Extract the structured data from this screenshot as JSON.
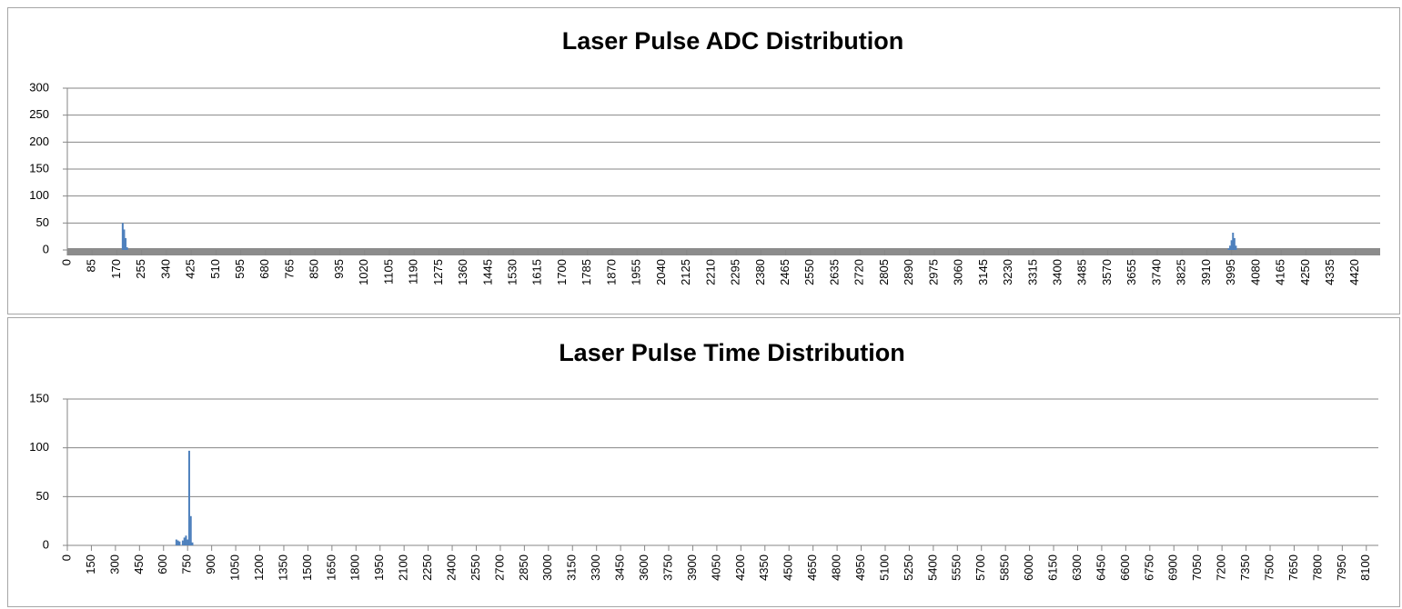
{
  "chart_data": [
    {
      "type": "bar",
      "title": "Laser Pulse ADC Distribution",
      "color": "#4f81bd",
      "grid": true,
      "x": [
        190,
        195,
        200,
        205,
        3985,
        3990,
        3995,
        4000,
        4005,
        4010
      ],
      "values": [
        50,
        38,
        22,
        5,
        3,
        8,
        18,
        32,
        22,
        8
      ],
      "xlim": [
        0,
        4505
      ],
      "xticks": [
        0,
        85,
        170,
        255,
        340,
        425,
        510,
        595,
        680,
        765,
        850,
        935,
        1020,
        1105,
        1190,
        1275,
        1360,
        1445,
        1530,
        1615,
        1700,
        1785,
        1870,
        1955,
        2040,
        2125,
        2210,
        2295,
        2380,
        2465,
        2550,
        2635,
        2720,
        2805,
        2890,
        2975,
        3060,
        3145,
        3230,
        3315,
        3400,
        3485,
        3570,
        3655,
        3740,
        3825,
        3910,
        3995,
        4080,
        4165,
        4250,
        4335,
        4420
      ],
      "ylim": [
        0,
        300
      ],
      "yticks": [
        0,
        50,
        100,
        150,
        200,
        250,
        300
      ]
    },
    {
      "type": "bar",
      "title": "Laser Pulse Time Distribution",
      "color": "#4f81bd",
      "grid": true,
      "x": [
        680,
        690,
        700,
        720,
        730,
        740,
        750,
        760,
        770,
        780
      ],
      "values": [
        6,
        5,
        4,
        5,
        8,
        10,
        6,
        97,
        30,
        3
      ],
      "xlim": [
        0,
        8175
      ],
      "xticks": [
        0,
        150,
        300,
        450,
        600,
        750,
        900,
        1050,
        1200,
        1350,
        1500,
        1650,
        1800,
        1950,
        2100,
        2250,
        2400,
        2550,
        2700,
        2850,
        3000,
        3150,
        3300,
        3450,
        3600,
        3750,
        3900,
        4050,
        4200,
        4350,
        4500,
        4650,
        4800,
        4950,
        5100,
        5250,
        5400,
        5550,
        5700,
        5850,
        6000,
        6150,
        6300,
        6450,
        6600,
        6750,
        6900,
        7050,
        7200,
        7350,
        7500,
        7650,
        7800,
        7950,
        8100
      ],
      "ylim": [
        0,
        150
      ],
      "yticks": [
        0,
        50,
        100,
        150
      ]
    }
  ]
}
